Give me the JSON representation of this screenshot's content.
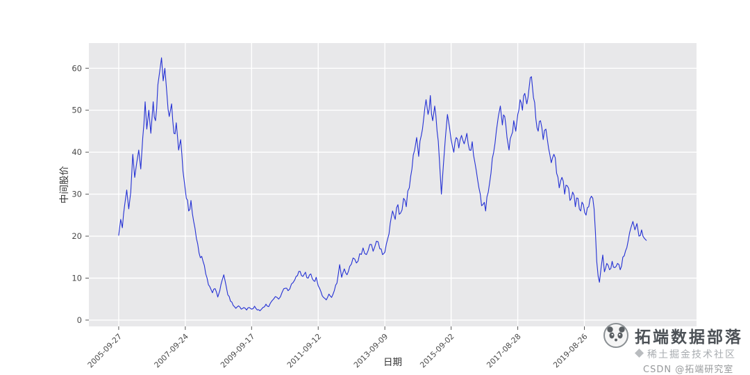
{
  "figure": {
    "background": "#ffffff",
    "plot_background": "#e8e8ea",
    "grid_color": "#ffffff",
    "line_color": "#222fd4",
    "tick_label_color": "#4a4a4a",
    "axis_label_color": "#333333"
  },
  "watermark": {
    "brand": "拓端数据部落",
    "community": "稀土掘金技术社区",
    "csdn": "CSDN @拓端研究室",
    "logo_icon": "panda-logo",
    "community_icon": "juejin-logo"
  },
  "chart_data": {
    "type": "line",
    "title": "",
    "xlabel": "日期",
    "ylabel": "中间股价",
    "x_unit": "decimal_year",
    "xlim": [
      2004.85,
      2023.0
    ],
    "ylim": [
      -1.5,
      66
    ],
    "grid": true,
    "legend": false,
    "y_ticks": [
      0,
      10,
      20,
      30,
      40,
      50,
      60
    ],
    "x_ticks": [
      {
        "pos": 2005.74,
        "label": "2005-09-27"
      },
      {
        "pos": 2007.73,
        "label": "2007-09-24"
      },
      {
        "pos": 2009.71,
        "label": "2009-09-17"
      },
      {
        "pos": 2011.7,
        "label": "2011-09-12"
      },
      {
        "pos": 2013.69,
        "label": "2013-09-09"
      },
      {
        "pos": 2015.67,
        "label": "2015-09-02"
      },
      {
        "pos": 2017.66,
        "label": "2017-08-28"
      },
      {
        "pos": 2019.65,
        "label": "2019-08-26"
      }
    ],
    "series": [
      {
        "name": "中间股价",
        "color": "#222fd4",
        "points": [
          [
            2005.74,
            20.2
          ],
          [
            2005.8,
            24.0
          ],
          [
            2005.85,
            22.0
          ],
          [
            2005.92,
            27.5
          ],
          [
            2005.98,
            31.0
          ],
          [
            2006.04,
            26.5
          ],
          [
            2006.1,
            30.5
          ],
          [
            2006.16,
            39.5
          ],
          [
            2006.22,
            34.0
          ],
          [
            2006.28,
            37.5
          ],
          [
            2006.34,
            40.5
          ],
          [
            2006.4,
            36.0
          ],
          [
            2006.46,
            43.5
          ],
          [
            2006.53,
            52.0
          ],
          [
            2006.58,
            45.5
          ],
          [
            2006.64,
            50.0
          ],
          [
            2006.7,
            44.5
          ],
          [
            2006.77,
            52.0
          ],
          [
            2006.84,
            47.5
          ],
          [
            2006.91,
            56.0
          ],
          [
            2006.97,
            59.5
          ],
          [
            2007.02,
            62.5
          ],
          [
            2007.07,
            57.0
          ],
          [
            2007.12,
            60.0
          ],
          [
            2007.18,
            54.0
          ],
          [
            2007.25,
            48.5
          ],
          [
            2007.32,
            51.5
          ],
          [
            2007.39,
            44.5
          ],
          [
            2007.46,
            47.0
          ],
          [
            2007.53,
            40.5
          ],
          [
            2007.59,
            43.0
          ],
          [
            2007.66,
            35.5
          ],
          [
            2007.7,
            33.0
          ],
          [
            2007.76,
            29.0
          ],
          [
            2007.83,
            26.0
          ],
          [
            2007.9,
            28.5
          ],
          [
            2007.98,
            23.5
          ],
          [
            2008.06,
            19.5
          ],
          [
            2008.14,
            16.0
          ],
          [
            2008.22,
            15.2
          ],
          [
            2008.3,
            13.0
          ],
          [
            2008.38,
            10.0
          ],
          [
            2008.46,
            8.0
          ],
          [
            2008.54,
            6.5
          ],
          [
            2008.62,
            7.5
          ],
          [
            2008.7,
            5.5
          ],
          [
            2008.76,
            7.0
          ],
          [
            2008.83,
            9.5
          ],
          [
            2008.88,
            10.8
          ],
          [
            2008.94,
            8.5
          ],
          [
            2009.0,
            6.0
          ],
          [
            2009.08,
            4.5
          ],
          [
            2009.16,
            3.5
          ],
          [
            2009.24,
            2.8
          ],
          [
            2009.32,
            3.4
          ],
          [
            2009.4,
            2.6
          ],
          [
            2009.48,
            3.0
          ],
          [
            2009.56,
            2.4
          ],
          [
            2009.64,
            3.0
          ],
          [
            2009.71,
            2.6
          ],
          [
            2009.8,
            3.3
          ],
          [
            2009.88,
            2.4
          ],
          [
            2009.96,
            2.2
          ],
          [
            2010.05,
            3.0
          ],
          [
            2010.14,
            3.8
          ],
          [
            2010.22,
            3.2
          ],
          [
            2010.32,
            4.6
          ],
          [
            2010.42,
            5.6
          ],
          [
            2010.52,
            5.0
          ],
          [
            2010.62,
            6.6
          ],
          [
            2010.72,
            7.6
          ],
          [
            2010.8,
            7.0
          ],
          [
            2010.9,
            8.6
          ],
          [
            2011.0,
            9.6
          ],
          [
            2011.08,
            10.6
          ],
          [
            2011.16,
            11.6
          ],
          [
            2011.24,
            10.4
          ],
          [
            2011.32,
            11.4
          ],
          [
            2011.4,
            10.0
          ],
          [
            2011.48,
            11.0
          ],
          [
            2011.56,
            9.4
          ],
          [
            2011.64,
            10.2
          ],
          [
            2011.7,
            8.2
          ],
          [
            2011.78,
            6.8
          ],
          [
            2011.86,
            5.4
          ],
          [
            2011.94,
            4.8
          ],
          [
            2012.02,
            6.2
          ],
          [
            2012.1,
            5.4
          ],
          [
            2012.18,
            7.0
          ],
          [
            2012.26,
            8.8
          ],
          [
            2012.34,
            13.2
          ],
          [
            2012.4,
            10.2
          ],
          [
            2012.48,
            12.2
          ],
          [
            2012.56,
            10.8
          ],
          [
            2012.64,
            12.8
          ],
          [
            2012.74,
            14.8
          ],
          [
            2012.84,
            13.6
          ],
          [
            2012.94,
            15.8
          ],
          [
            2013.04,
            17.2
          ],
          [
            2013.14,
            15.6
          ],
          [
            2013.24,
            18.0
          ],
          [
            2013.34,
            16.4
          ],
          [
            2013.44,
            18.8
          ],
          [
            2013.54,
            17.0
          ],
          [
            2013.62,
            15.6
          ],
          [
            2013.69,
            16.2
          ],
          [
            2013.78,
            19.5
          ],
          [
            2013.85,
            23.0
          ],
          [
            2013.92,
            26.0
          ],
          [
            2014.0,
            24.0
          ],
          [
            2014.08,
            27.5
          ],
          [
            2014.16,
            25.5
          ],
          [
            2014.25,
            29.0
          ],
          [
            2014.33,
            27.0
          ],
          [
            2014.42,
            31.5
          ],
          [
            2014.5,
            36.0
          ],
          [
            2014.58,
            40.5
          ],
          [
            2014.64,
            43.5
          ],
          [
            2014.7,
            39.0
          ],
          [
            2014.78,
            44.0
          ],
          [
            2014.85,
            48.0
          ],
          [
            2014.92,
            52.5
          ],
          [
            2014.98,
            49.0
          ],
          [
            2015.05,
            53.5
          ],
          [
            2015.12,
            47.5
          ],
          [
            2015.18,
            51.0
          ],
          [
            2015.25,
            45.0
          ],
          [
            2015.32,
            38.0
          ],
          [
            2015.38,
            30.0
          ],
          [
            2015.44,
            37.0
          ],
          [
            2015.5,
            43.5
          ],
          [
            2015.56,
            49.0
          ],
          [
            2015.62,
            46.0
          ],
          [
            2015.67,
            43.0
          ],
          [
            2015.75,
            40.0
          ],
          [
            2015.82,
            43.5
          ],
          [
            2015.9,
            41.0
          ],
          [
            2015.98,
            44.0
          ],
          [
            2016.06,
            42.0
          ],
          [
            2016.14,
            44.5
          ],
          [
            2016.22,
            40.5
          ],
          [
            2016.3,
            42.5
          ],
          [
            2016.38,
            37.5
          ],
          [
            2016.46,
            33.5
          ],
          [
            2016.54,
            30.0
          ],
          [
            2016.62,
            27.5
          ],
          [
            2016.7,
            26.0
          ],
          [
            2016.78,
            30.5
          ],
          [
            2016.86,
            35.0
          ],
          [
            2016.94,
            40.0
          ],
          [
            2017.02,
            45.0
          ],
          [
            2017.08,
            48.5
          ],
          [
            2017.14,
            51.0
          ],
          [
            2017.2,
            46.5
          ],
          [
            2017.27,
            48.5
          ],
          [
            2017.34,
            43.5
          ],
          [
            2017.4,
            40.5
          ],
          [
            2017.47,
            44.0
          ],
          [
            2017.54,
            47.5
          ],
          [
            2017.6,
            45.0
          ],
          [
            2017.66,
            49.0
          ],
          [
            2017.73,
            52.5
          ],
          [
            2017.8,
            50.0
          ],
          [
            2017.87,
            54.0
          ],
          [
            2017.93,
            51.5
          ],
          [
            2018.0,
            55.5
          ],
          [
            2018.07,
            58.0
          ],
          [
            2018.13,
            53.0
          ],
          [
            2018.2,
            48.0
          ],
          [
            2018.27,
            45.0
          ],
          [
            2018.34,
            47.5
          ],
          [
            2018.42,
            43.0
          ],
          [
            2018.5,
            45.5
          ],
          [
            2018.58,
            41.0
          ],
          [
            2018.66,
            37.5
          ],
          [
            2018.74,
            39.5
          ],
          [
            2018.82,
            35.0
          ],
          [
            2018.9,
            31.5
          ],
          [
            2018.98,
            34.0
          ],
          [
            2019.06,
            30.0
          ],
          [
            2019.14,
            32.0
          ],
          [
            2019.22,
            28.5
          ],
          [
            2019.3,
            30.5
          ],
          [
            2019.38,
            27.0
          ],
          [
            2019.46,
            29.0
          ],
          [
            2019.54,
            26.0
          ],
          [
            2019.62,
            27.5
          ],
          [
            2019.7,
            25.0
          ],
          [
            2019.78,
            27.0
          ],
          [
            2019.86,
            29.5
          ],
          [
            2019.94,
            26.5
          ],
          [
            2019.98,
            21.0
          ],
          [
            2020.02,
            14.0
          ],
          [
            2020.06,
            10.5
          ],
          [
            2020.1,
            9.0
          ],
          [
            2020.15,
            12.5
          ],
          [
            2020.2,
            15.5
          ],
          [
            2020.25,
            11.5
          ],
          [
            2020.32,
            13.5
          ],
          [
            2020.4,
            12.0
          ],
          [
            2020.48,
            14.0
          ],
          [
            2020.56,
            12.5
          ],
          [
            2020.64,
            13.5
          ],
          [
            2020.72,
            12.0
          ],
          [
            2020.8,
            15.0
          ],
          [
            2020.88,
            16.5
          ],
          [
            2020.96,
            19.0
          ],
          [
            2021.04,
            22.0
          ],
          [
            2021.1,
            23.5
          ],
          [
            2021.16,
            21.5
          ],
          [
            2021.22,
            23.0
          ],
          [
            2021.28,
            20.0
          ],
          [
            2021.36,
            21.5
          ],
          [
            2021.44,
            19.5
          ],
          [
            2021.5,
            19.0
          ]
        ]
      }
    ]
  }
}
